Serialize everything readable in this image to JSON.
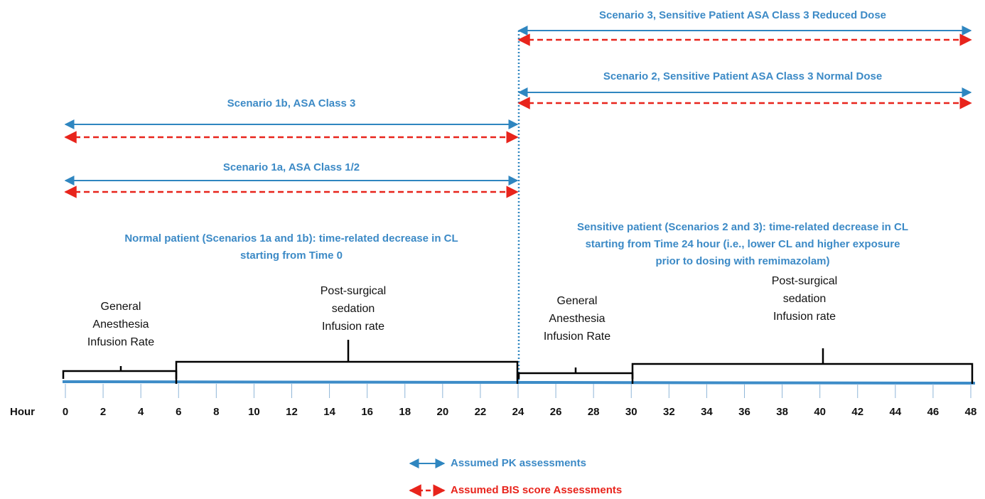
{
  "axis": {
    "label": "Hour",
    "ticks": [
      0,
      2,
      4,
      6,
      8,
      10,
      12,
      14,
      16,
      18,
      20,
      22,
      24,
      26,
      28,
      30,
      32,
      34,
      36,
      38,
      40,
      42,
      44,
      46,
      48
    ]
  },
  "scenarios": [
    {
      "label": "Scenario 3, Sensitive Patient ASA Class 3 Reduced Dose"
    },
    {
      "label": "Scenario 2, Sensitive Patient ASA Class 3 Normal Dose"
    },
    {
      "label": "Scenario 1b, ASA Class 3"
    },
    {
      "label": "Scenario 1a, ASA Class 1/2"
    }
  ],
  "notes": [
    {
      "lines": [
        "Normal patient (Scenarios 1a and 1b): time-related decrease in CL",
        "starting from Time 0"
      ]
    },
    {
      "lines": [
        "Sensitive patient (Scenarios 2 and 3): time-related decrease in CL",
        "starting from Time 24 hour (i.e., lower CL and higher exposure",
        "prior to dosing with remimazolam)"
      ]
    }
  ],
  "phases": [
    {
      "lines": [
        "General",
        "Anesthesia",
        "Infusion Rate"
      ]
    },
    {
      "lines": [
        "Post-surgical",
        "sedation",
        "Infusion rate"
      ]
    },
    {
      "lines": [
        "General",
        "Anesthesia",
        "Infusion Rate"
      ]
    },
    {
      "lines": [
        "Post-surgical",
        "sedation",
        "Infusion rate"
      ]
    }
  ],
  "legend": [
    {
      "label": "Assumed PK assessments"
    },
    {
      "label": "Assumed BIS score Assessments"
    }
  ]
}
